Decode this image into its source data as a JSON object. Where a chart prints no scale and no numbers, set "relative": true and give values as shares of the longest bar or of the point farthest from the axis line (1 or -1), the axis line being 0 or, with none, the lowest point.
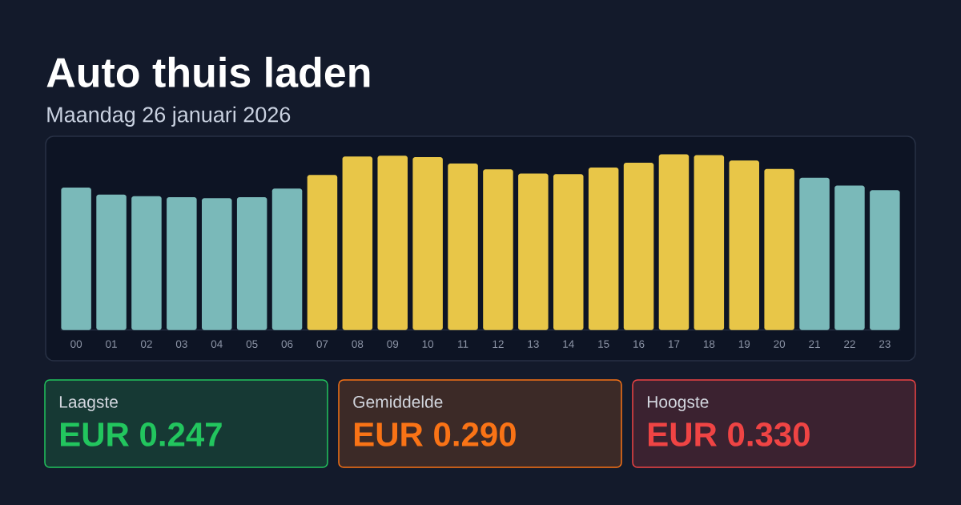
{
  "chart_data": [
    {
      "type": "bar",
      "title": "Auto thuis laden",
      "subtitle": "Maandag 26 januari 2026",
      "categories": [
        "00",
        "01",
        "02",
        "03",
        "04",
        "05",
        "06",
        "07",
        "08",
        "09",
        "10",
        "11",
        "12",
        "13",
        "14",
        "15",
        "16",
        "17",
        "18",
        "19",
        "20",
        "21",
        "22",
        "23"
      ],
      "values": [
        0.81,
        0.77,
        0.761,
        0.756,
        0.75,
        0.755,
        0.805,
        0.882,
        0.987,
        0.992,
        0.984,
        0.947,
        0.914,
        0.89,
        0.887,
        0.924,
        0.952,
        1,
        0.995,
        0.964,
        0.916,
        0.866,
        0.822,
        0.795
      ],
      "colors": [
        "#7ab9b9",
        "#7ab9b9",
        "#7ab9b9",
        "#7ab9b9",
        "#7ab9b9",
        "#7ab9b9",
        "#7ab9b9",
        "#e8c648",
        "#e8c648",
        "#e8c648",
        "#e8c648",
        "#e8c648",
        "#e8c648",
        "#e8c648",
        "#e8c648",
        "#e8c648",
        "#e8c648",
        "#e8c648",
        "#e8c648",
        "#e8c648",
        "#e8c648",
        "#7ab9b9",
        "#7ab9b9",
        "#7ab9b9"
      ],
      "relative": true
    },
    {
      "type": "other",
      "categories": [
        "Laagste",
        "Gemiddelde",
        "Hoogste"
      ],
      "value_labels": [
        "EUR 0.247",
        "EUR 0.290",
        "EUR 0.330"
      ],
      "colors": [
        "#22c55e",
        "#f97316",
        "#ef4444"
      ]
    }
  ]
}
